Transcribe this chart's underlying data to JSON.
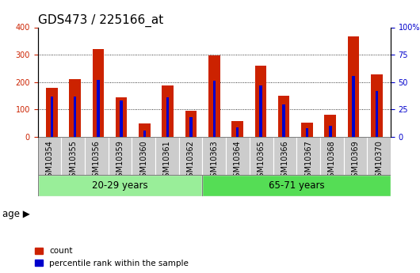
{
  "title": "GDS473 / 225166_at",
  "samples": [
    "GSM10354",
    "GSM10355",
    "GSM10356",
    "GSM10359",
    "GSM10360",
    "GSM10361",
    "GSM10362",
    "GSM10363",
    "GSM10364",
    "GSM10365",
    "GSM10366",
    "GSM10367",
    "GSM10368",
    "GSM10369",
    "GSM10370"
  ],
  "counts": [
    178,
    210,
    320,
    145,
    50,
    188,
    95,
    298,
    58,
    260,
    150,
    52,
    80,
    368,
    228
  ],
  "percentiles": [
    37,
    37,
    52,
    33,
    6,
    36,
    18,
    51,
    9,
    47,
    30,
    8,
    10,
    56,
    42
  ],
  "group1_label": "20-29 years",
  "group1_count": 7,
  "group2_label": "65-71 years",
  "group2_count": 8,
  "age_label": "age",
  "bar_color_count": "#cc2200",
  "bar_color_pct": "#0000cc",
  "legend_count": "count",
  "legend_pct": "percentile rank within the sample",
  "ylim_left": [
    0,
    400
  ],
  "ylim_right": [
    0,
    100
  ],
  "yticks_left": [
    0,
    100,
    200,
    300,
    400
  ],
  "yticks_right": [
    0,
    25,
    50,
    75,
    100
  ],
  "grid_color": "#000000",
  "bg_plot": "#ffffff",
  "bg_xticklabels": "#cccccc",
  "bg_group1": "#99ee99",
  "bg_group2": "#55dd55",
  "title_fontsize": 11,
  "tick_fontsize": 7,
  "label_fontsize": 8.5
}
